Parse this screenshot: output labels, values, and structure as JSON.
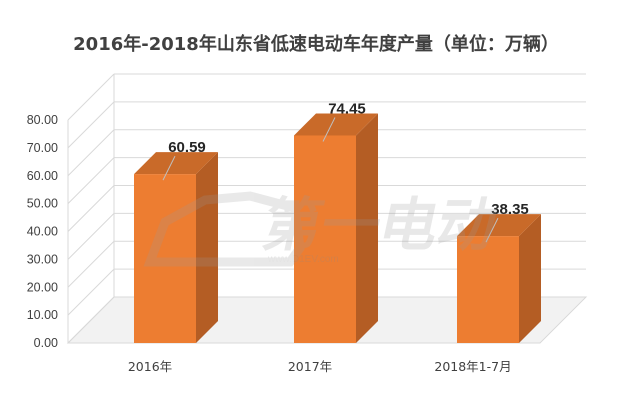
{
  "chart_data": {
    "type": "bar",
    "title": "2016年-2018年山东省低速电动车年度产量（单位：万辆）",
    "categories": [
      "2016年",
      "2017年",
      "2018年1-7月"
    ],
    "values": [
      60.59,
      74.45,
      38.35
    ],
    "data_labels": [
      "60.59",
      "74.45",
      "38.35"
    ],
    "y_ticks": [
      "0.00",
      "10.00",
      "20.00",
      "30.00",
      "40.00",
      "50.00",
      "60.00",
      "70.00",
      "80.00"
    ],
    "ylim": [
      0,
      80
    ],
    "grid": true,
    "style": "3d-column",
    "colors": {
      "bar_front": "#ED7D31",
      "bar_side": "#B45D24",
      "bar_top": "#C96A29",
      "grid": "#D9D9D9",
      "text": "#404040"
    }
  },
  "watermark": {
    "text": "第一电动",
    "sub": "www.D1EV.com"
  }
}
